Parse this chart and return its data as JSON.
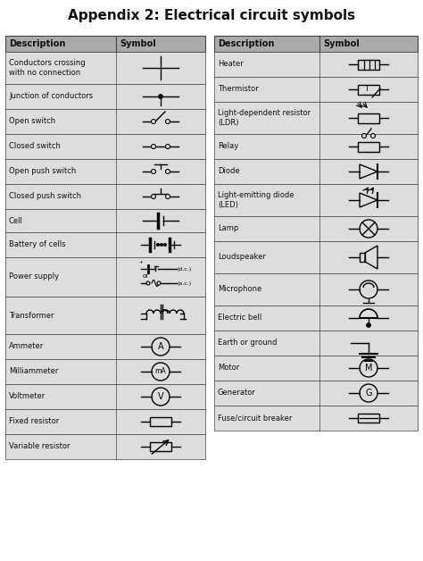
{
  "title": "Appendix 2: Electrical circuit symbols",
  "title_fontsize": 11,
  "header_bg": "#aaaaaa",
  "row_bg": "#dddddd",
  "border_color": "#444444",
  "text_color": "#111111",
  "left_col_descriptions": [
    "Conductors crossing\nwith no connection",
    "Junction of conductors",
    "Open switch",
    "Closed switch",
    "Open push switch",
    "Closed push switch",
    "Cell",
    "Battery of cells",
    "Power supply",
    "Transformer",
    "Ammeter",
    "Milliammeter",
    "Voltmeter",
    "Fixed resistor",
    "Variable resistor"
  ],
  "right_col_descriptions": [
    "Heater",
    "Thermistor",
    "Light-dependent resistor\n(LDR)",
    "Relay",
    "Diode",
    "Light-emitting diode\n(LED)",
    "Lamp",
    "Loudspeaker",
    "Microphone",
    "Electric bell",
    "Earth or ground",
    "Motor",
    "Generator",
    "Fuse/circuit breaker"
  ],
  "fig_width": 4.74,
  "fig_height": 6.28,
  "dpi": 100
}
